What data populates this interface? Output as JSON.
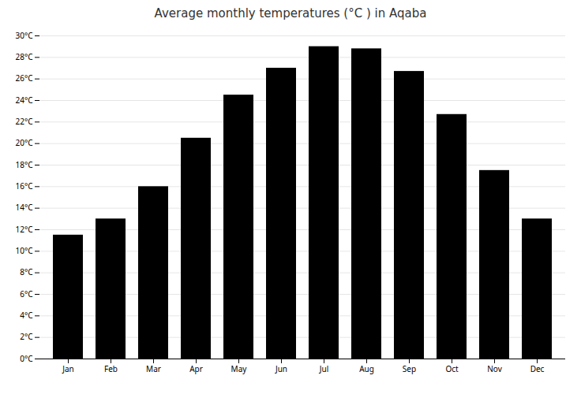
{
  "chart_data": {
    "type": "bar",
    "title": "Average monthly temperatures (°C ) in Aqaba",
    "categories": [
      "Jan",
      "Feb",
      "Mar",
      "Apr",
      "May",
      "Jun",
      "Jul",
      "Aug",
      "Sep",
      "Oct",
      "Nov",
      "Dec"
    ],
    "values": [
      11.5,
      13.0,
      16.0,
      20.5,
      24.5,
      27.0,
      29.0,
      28.8,
      26.7,
      22.7,
      17.5,
      13.0
    ],
    "ylim": [
      0,
      30
    ],
    "yticks": [
      {
        "value": 0,
        "label": "0°C"
      },
      {
        "value": 2,
        "label": "2°C"
      },
      {
        "value": 4,
        "label": "4°C"
      },
      {
        "value": 6,
        "label": "6°C"
      },
      {
        "value": 8,
        "label": "8°C"
      },
      {
        "value": 10,
        "label": "10°C"
      },
      {
        "value": 12,
        "label": "12°C"
      },
      {
        "value": 14,
        "label": "14°C"
      },
      {
        "value": 16,
        "label": "16°C"
      },
      {
        "value": 18,
        "label": "18°C"
      },
      {
        "value": 20,
        "label": "20°C"
      },
      {
        "value": 22,
        "label": "22°C"
      },
      {
        "value": 24,
        "label": "24°C"
      },
      {
        "value": 26,
        "label": "26°C"
      },
      {
        "value": 28,
        "label": "28°C"
      },
      {
        "value": 30,
        "label": "30°C"
      }
    ],
    "grid": true
  }
}
